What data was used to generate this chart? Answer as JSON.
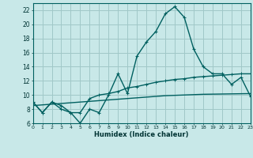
{
  "title": "",
  "xlabel": "Humidex (Indice chaleur)",
  "background_color": "#c8e8e8",
  "grid_color": "#a0c8c8",
  "line_color": "#006060",
  "x_values": [
    0,
    1,
    2,
    3,
    4,
    5,
    6,
    7,
    8,
    9,
    10,
    11,
    12,
    13,
    14,
    15,
    16,
    17,
    18,
    19,
    20,
    21,
    22,
    23
  ],
  "line1_y": [
    9.0,
    7.5,
    9.0,
    8.5,
    7.5,
    6.0,
    8.0,
    7.5,
    10.0,
    13.0,
    10.2,
    15.5,
    17.5,
    19.0,
    21.5,
    22.5,
    21.0,
    16.5,
    14.0,
    13.0,
    13.0,
    11.5,
    12.5,
    9.8
  ],
  "line2_y": [
    9.0,
    7.5,
    9.0,
    8.0,
    7.5,
    7.5,
    9.5,
    10.0,
    10.2,
    10.5,
    11.0,
    11.2,
    11.5,
    11.8,
    12.0,
    12.2,
    12.3,
    12.5,
    12.6,
    12.7,
    12.8,
    12.9,
    13.0,
    13.0
  ],
  "line3_y": [
    8.5,
    8.6,
    8.7,
    8.8,
    8.9,
    9.0,
    9.1,
    9.2,
    9.3,
    9.4,
    9.5,
    9.6,
    9.7,
    9.8,
    9.9,
    9.95,
    10.0,
    10.05,
    10.1,
    10.12,
    10.14,
    10.16,
    10.18,
    10.2
  ],
  "xlim": [
    0,
    23
  ],
  "ylim": [
    6,
    23
  ],
  "yticks": [
    6,
    8,
    10,
    12,
    14,
    16,
    18,
    20,
    22
  ],
  "xticks": [
    0,
    1,
    2,
    3,
    4,
    5,
    6,
    7,
    8,
    9,
    10,
    11,
    12,
    13,
    14,
    15,
    16,
    17,
    18,
    19,
    20,
    21,
    22,
    23
  ]
}
